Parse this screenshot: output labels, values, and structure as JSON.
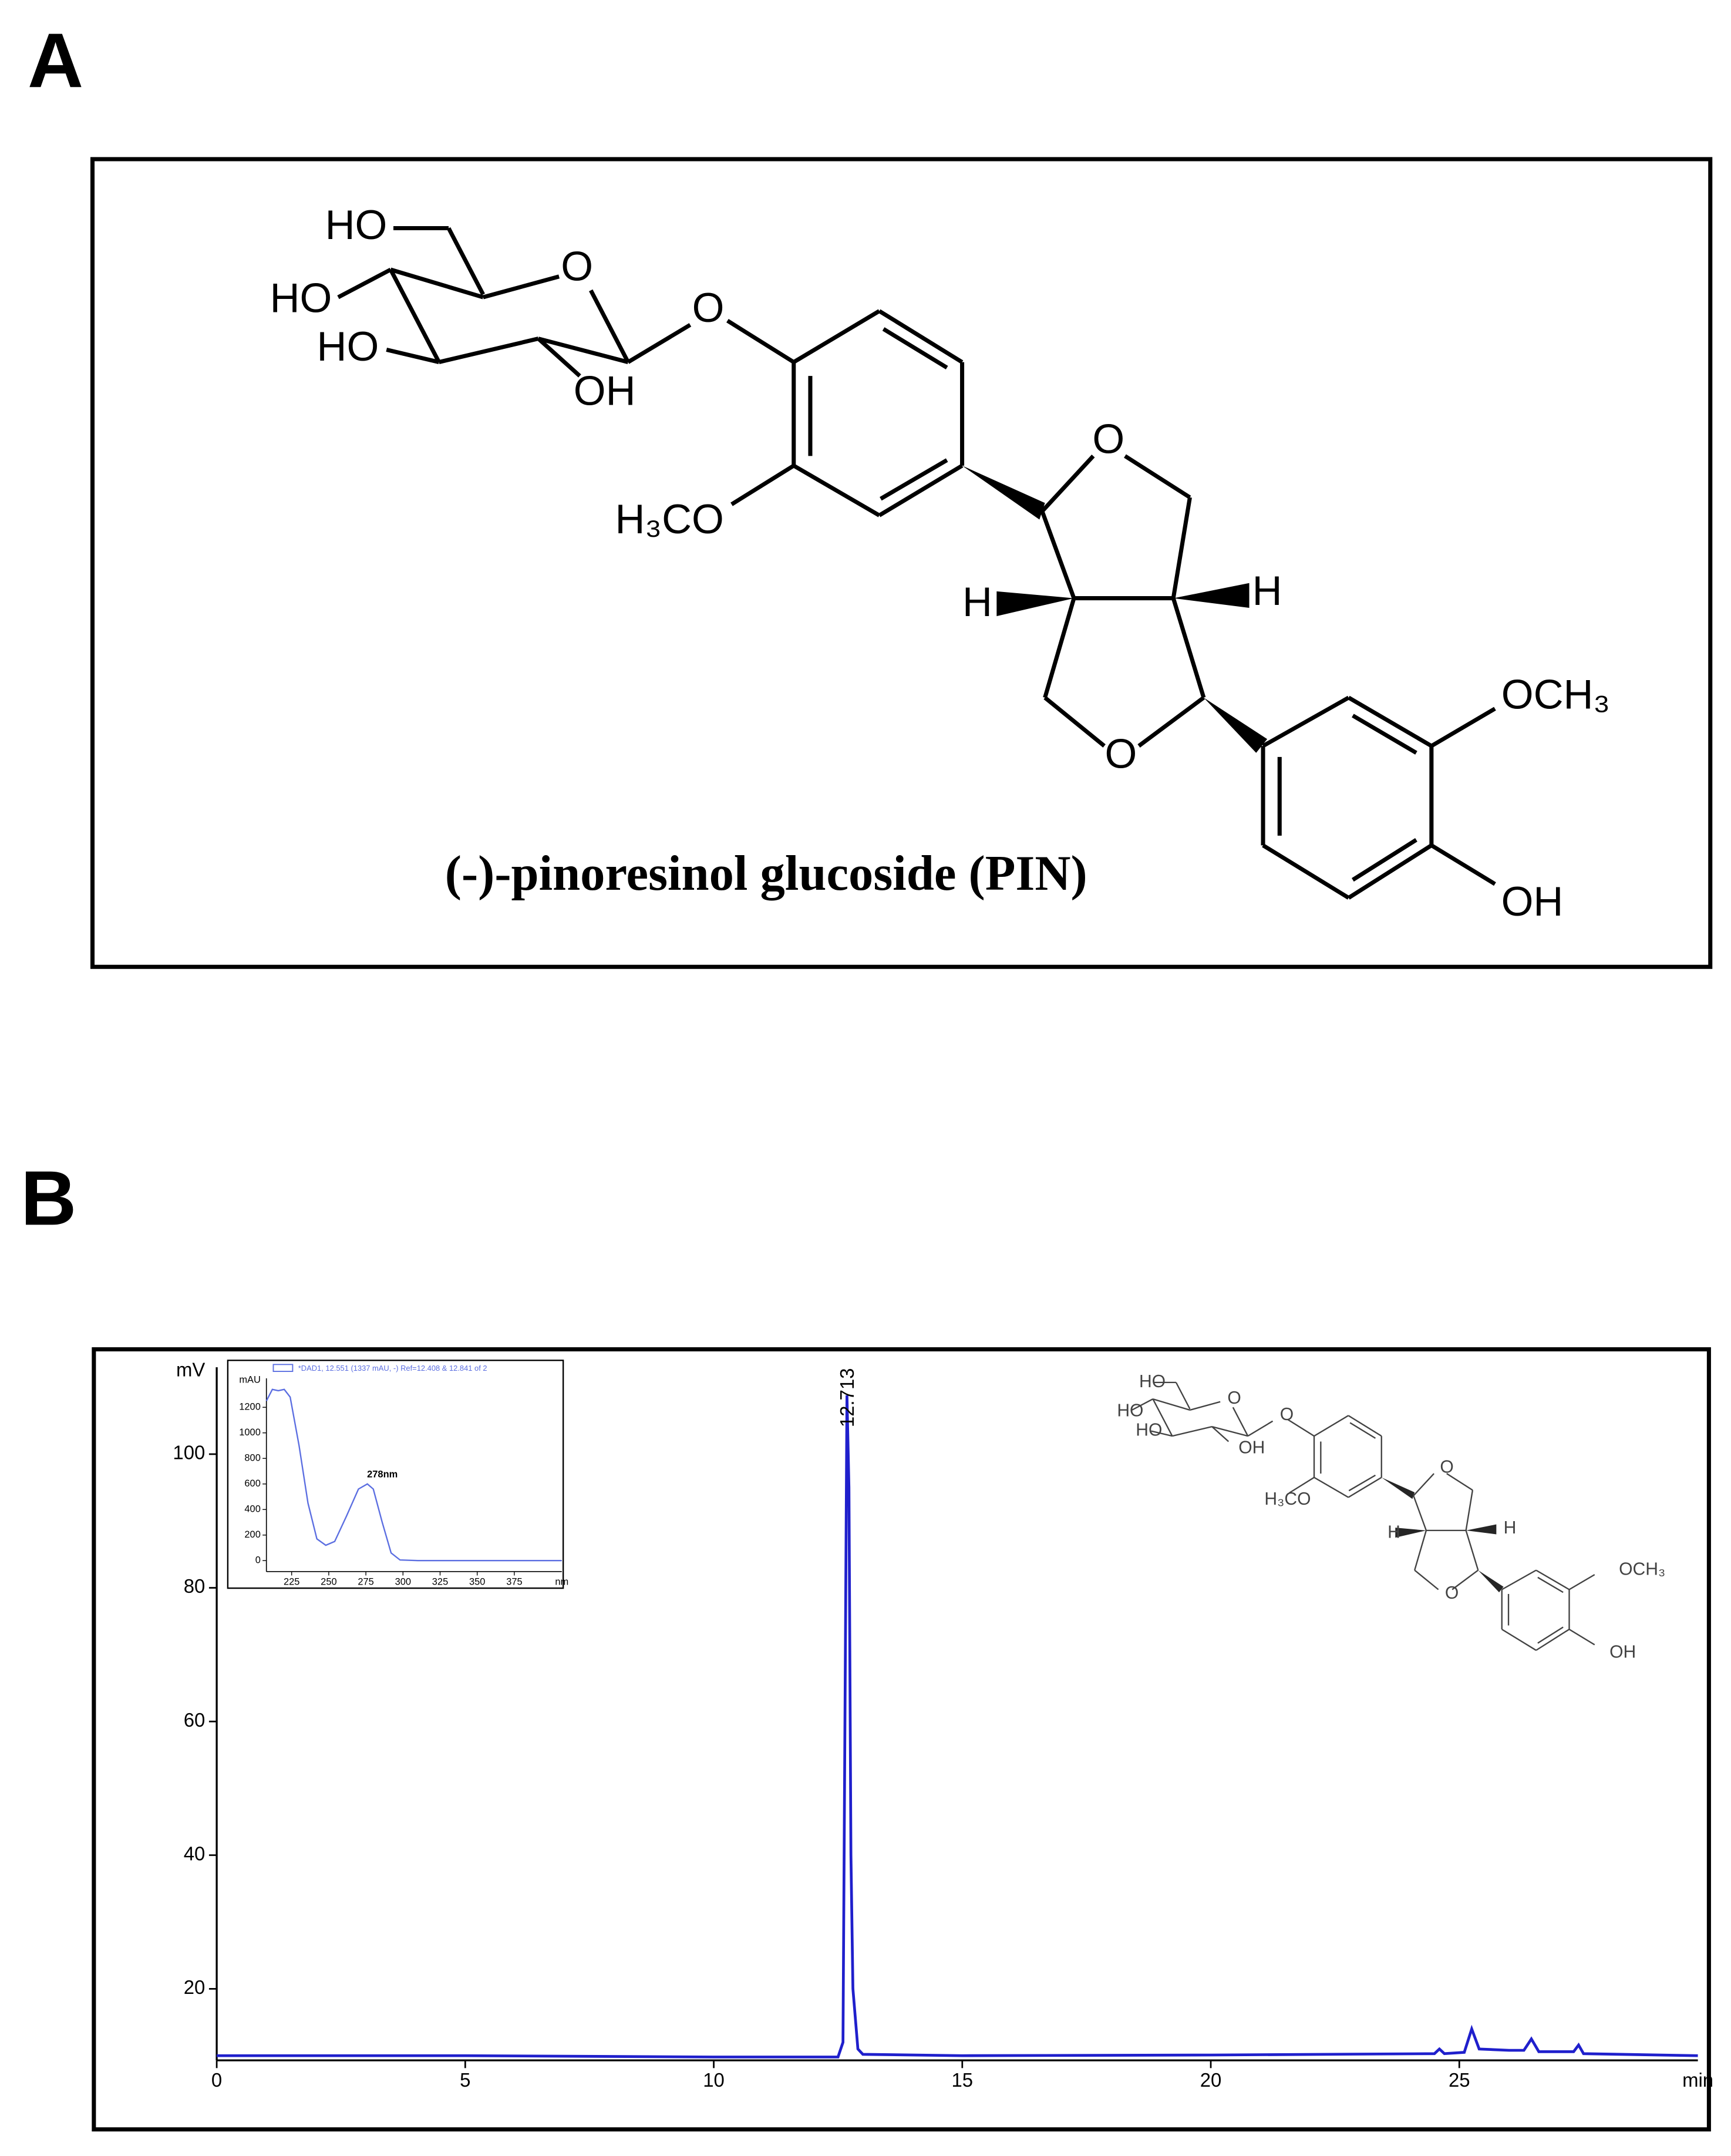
{
  "panel_a": {
    "label": "A",
    "caption": "(-)-pinoresinol glucoside (PIN)",
    "atoms": [
      "HO",
      "HO",
      "HO",
      "OH",
      "O",
      "O",
      "H₃CO",
      "O",
      "H",
      "H",
      "O",
      "OCH₃",
      "OH"
    ]
  },
  "chart_data": {
    "type": "line",
    "label": "B",
    "y_unit": "mV",
    "x_unit": "min",
    "xlim": [
      0,
      29.8
    ],
    "ylim": [
      9.3,
      113
    ],
    "xticks": [
      0,
      5,
      10,
      15,
      20,
      25
    ],
    "yticks": [
      20,
      40,
      60,
      80,
      100
    ],
    "x": [
      0,
      5,
      10,
      12.5,
      12.6,
      12.68,
      12.72,
      12.76,
      12.8,
      12.9,
      13,
      15,
      20,
      24.5,
      24.6,
      24.7,
      25.1,
      25.25,
      25.4,
      26,
      26.3,
      26.45,
      26.6,
      27.3,
      27.4,
      27.5,
      29.8
    ],
    "series": [
      {
        "color": "#1f1fcc",
        "values": [
          10,
          10,
          9.8,
          9.8,
          12,
          108.8,
          95,
          40,
          20,
          11,
          10.2,
          10,
          10.1,
          10.3,
          11,
          10.3,
          10.5,
          14,
          11,
          10.8,
          10.8,
          12.5,
          10.6,
          10.6,
          11.6,
          10.3,
          10
        ]
      }
    ],
    "peak_labels": [
      12.713
    ],
    "inset": {
      "type": "line",
      "legend": "*DAD1, 12.551 (1337 mAU, -) Ref=12.408 & 12.841 of 2",
      "y_unit": "mAU",
      "x_unit": "nm",
      "annotation": "278nm",
      "xlim": [
        208,
        407
      ],
      "ylim": [
        -86,
        1427
      ],
      "xticks": [
        225,
        250,
        275,
        300,
        325,
        350,
        375
      ],
      "yticks": [
        0,
        200,
        400,
        600,
        800,
        1000,
        1200
      ],
      "x": [
        208,
        212,
        216,
        220,
        224,
        230,
        236,
        242,
        248,
        254,
        262,
        270,
        276,
        280,
        286,
        292,
        298,
        310,
        407
      ],
      "series": [
        {
          "color": "#5b6ee1",
          "values": [
            1250,
            1340,
            1330,
            1340,
            1280,
            900,
            450,
            170,
            120,
            150,
            350,
            560,
            600,
            560,
            300,
            60,
            5,
            0,
            0
          ]
        }
      ]
    }
  }
}
